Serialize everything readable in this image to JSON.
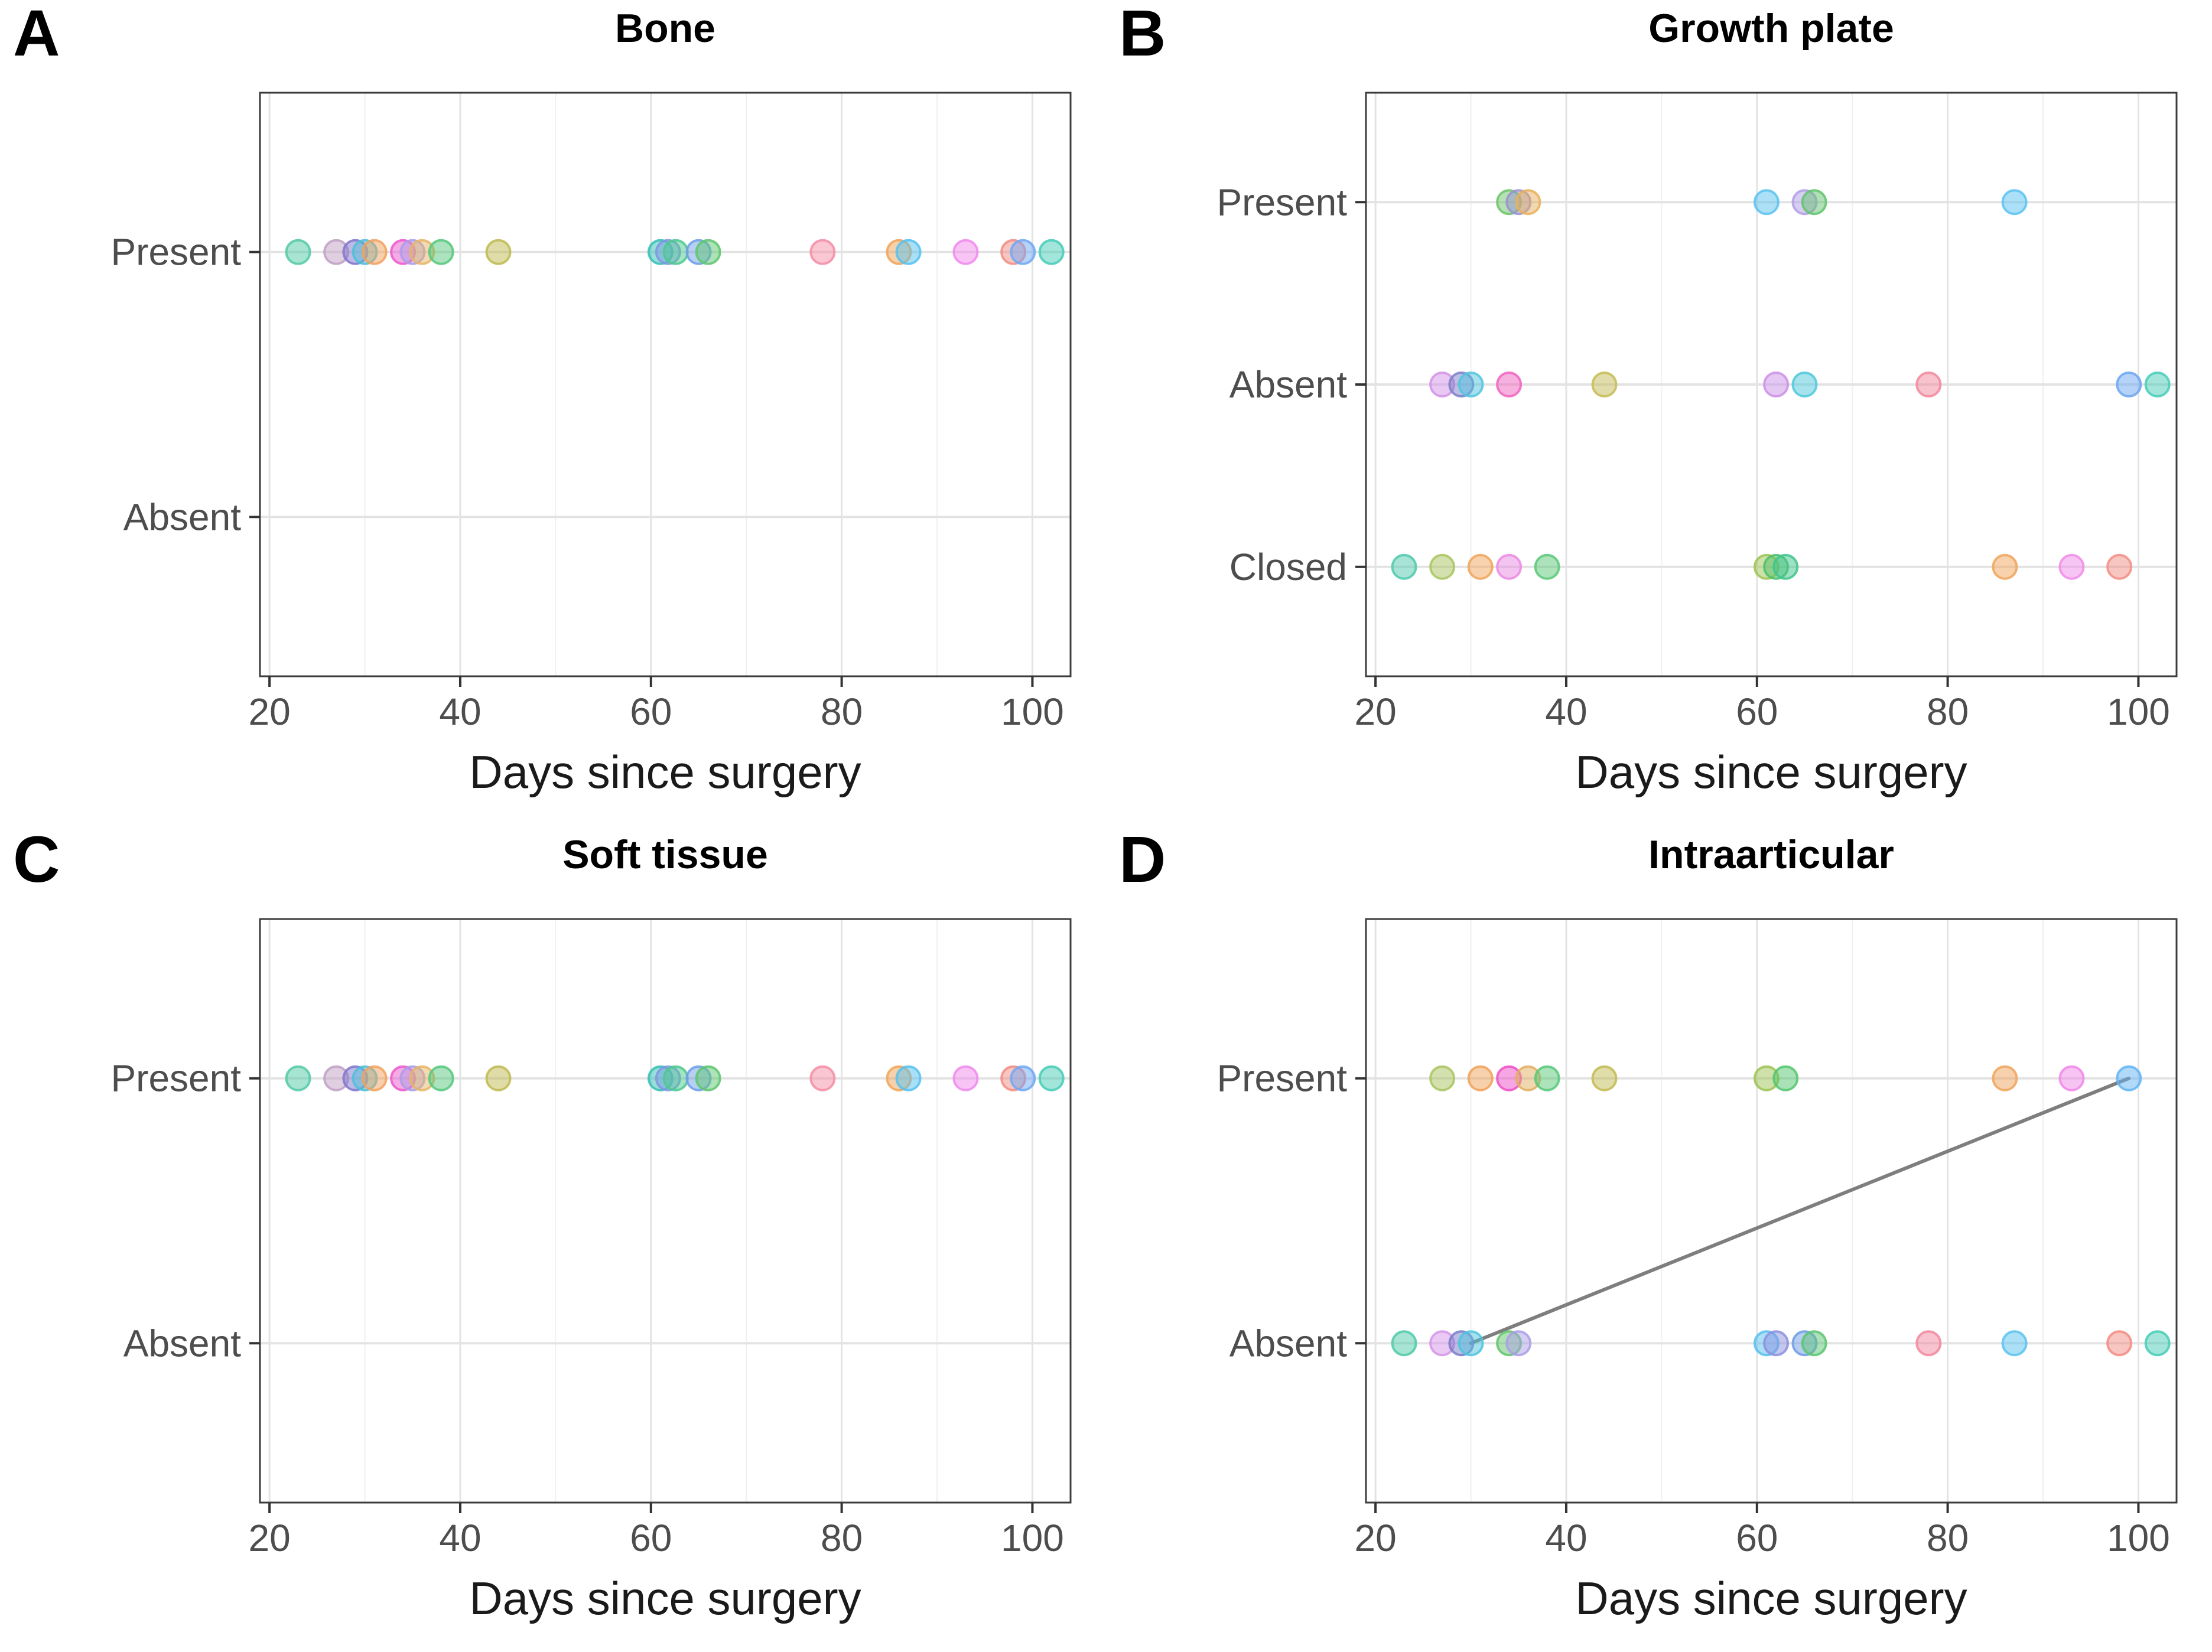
{
  "figure_title": "",
  "axis": {
    "xlabel": "Days since surgery",
    "x_ticks": [
      20,
      40,
      60,
      80,
      100
    ],
    "x_minor_ticks": [
      30,
      50,
      70,
      90
    ],
    "x_range": [
      19,
      104
    ]
  },
  "style": {
    "panel_border_color": "#3c3c3c",
    "major_grid_color": "#e3e3e3",
    "minor_grid_color": "#f0f0f0",
    "tick_color": "#333333",
    "tick_label_color": "#4d4d4d",
    "dot_fill_opacity": 0.5,
    "dot_stroke_opacity": 0.85,
    "connector_color": "#7e7e7e"
  },
  "chart_data": [
    {
      "type": "scatter",
      "letter": "A",
      "title": "Bone",
      "xlabel": "Days since surgery",
      "ylabel": "",
      "categories": [
        "Present",
        "Absent"
      ],
      "xlim": [
        19,
        104
      ],
      "x_ticks": [
        20,
        40,
        60,
        80,
        100
      ],
      "grid": true,
      "points": [
        {
          "day": 23,
          "cat": "Present",
          "color": "#52c9a6"
        },
        {
          "day": 27,
          "cat": "Present",
          "color": "#bfa0c4"
        },
        {
          "day": 29,
          "cat": "Present",
          "color": "#8076cc"
        },
        {
          "day": 30,
          "cat": "Present",
          "color": "#4fc0d8"
        },
        {
          "day": 31,
          "cat": "Present",
          "color": "#f2a25e"
        },
        {
          "day": 34,
          "cat": "Present",
          "color": "#ec57cc"
        },
        {
          "day": 35,
          "cat": "Present",
          "color": "#ab9ee6"
        },
        {
          "day": 36,
          "cat": "Present",
          "color": "#e6b566"
        },
        {
          "day": 38,
          "cat": "Present",
          "color": "#55c87c"
        },
        {
          "day": 44,
          "cat": "Present",
          "color": "#c0ba50"
        },
        {
          "day": 61,
          "cat": "Present",
          "color": "#34bfb4"
        },
        {
          "day": 61.8,
          "cat": "Present",
          "color": "#7b99e0"
        },
        {
          "day": 62.6,
          "cat": "Present",
          "color": "#4ec98e"
        },
        {
          "day": 65,
          "cat": "Present",
          "color": "#6f9fe8"
        },
        {
          "day": 66,
          "cat": "Present",
          "color": "#5ec56f"
        },
        {
          "day": 78,
          "cat": "Present",
          "color": "#f48da4"
        },
        {
          "day": 86,
          "cat": "Present",
          "color": "#f0a458"
        },
        {
          "day": 87,
          "cat": "Present",
          "color": "#56c1f0"
        },
        {
          "day": 93,
          "cat": "Present",
          "color": "#f089ec"
        },
        {
          "day": 98,
          "cat": "Present",
          "color": "#f28c84"
        },
        {
          "day": 99,
          "cat": "Present",
          "color": "#6ea8f5"
        },
        {
          "day": 102,
          "cat": "Present",
          "color": "#45ccb6"
        }
      ]
    },
    {
      "type": "scatter",
      "letter": "B",
      "title": "Growth plate",
      "xlabel": "Days since surgery",
      "ylabel": "",
      "categories": [
        "Present",
        "Absent",
        "Closed"
      ],
      "xlim": [
        19,
        104
      ],
      "x_ticks": [
        20,
        40,
        60,
        80,
        100
      ],
      "grid": true,
      "points": [
        {
          "day": 34,
          "cat": "Present",
          "color": "#6cc46a"
        },
        {
          "day": 35,
          "cat": "Present",
          "color": "#9a92d0"
        },
        {
          "day": 36,
          "cat": "Present",
          "color": "#e8b05e"
        },
        {
          "day": 61,
          "cat": "Present",
          "color": "#5ac2ee"
        },
        {
          "day": 65,
          "cat": "Present",
          "color": "#b19ce5"
        },
        {
          "day": 66,
          "cat": "Present",
          "color": "#61c46e"
        },
        {
          "day": 87,
          "cat": "Present",
          "color": "#5ac2f2"
        },
        {
          "day": 27,
          "cat": "Absent",
          "color": "#d392e8"
        },
        {
          "day": 29,
          "cat": "Absent",
          "color": "#7b7fca"
        },
        {
          "day": 30,
          "cat": "Absent",
          "color": "#52c4de"
        },
        {
          "day": 34,
          "cat": "Absent",
          "color": "#f064c0"
        },
        {
          "day": 44,
          "cat": "Absent",
          "color": "#c4bc55"
        },
        {
          "day": 62,
          "cat": "Absent",
          "color": "#cc8fe8"
        },
        {
          "day": 65,
          "cat": "Absent",
          "color": "#4fc8da"
        },
        {
          "day": 78,
          "cat": "Absent",
          "color": "#f2879c"
        },
        {
          "day": 99,
          "cat": "Absent",
          "color": "#6ba6f2"
        },
        {
          "day": 102,
          "cat": "Absent",
          "color": "#47ccb8"
        },
        {
          "day": 23,
          "cat": "Closed",
          "color": "#4fc9ab"
        },
        {
          "day": 27,
          "cat": "Closed",
          "color": "#a9c45f"
        },
        {
          "day": 31,
          "cat": "Closed",
          "color": "#f0a55c"
        },
        {
          "day": 34,
          "cat": "Closed",
          "color": "#ea8ae2"
        },
        {
          "day": 38,
          "cat": "Closed",
          "color": "#5bc878"
        },
        {
          "day": 61,
          "cat": "Closed",
          "color": "#9ec354"
        },
        {
          "day": 62,
          "cat": "Closed",
          "color": "#4ec06a"
        },
        {
          "day": 63,
          "cat": "Closed",
          "color": "#3fc48c"
        },
        {
          "day": 86,
          "cat": "Closed",
          "color": "#efa55a"
        },
        {
          "day": 93,
          "cat": "Closed",
          "color": "#ee8ce8"
        },
        {
          "day": 98,
          "cat": "Closed",
          "color": "#f28d84"
        }
      ]
    },
    {
      "type": "scatter",
      "letter": "C",
      "title": "Soft tissue",
      "xlabel": "Days since surgery",
      "ylabel": "",
      "categories": [
        "Present",
        "Absent"
      ],
      "xlim": [
        19,
        104
      ],
      "x_ticks": [
        20,
        40,
        60,
        80,
        100
      ],
      "grid": true,
      "points": [
        {
          "day": 23,
          "cat": "Present",
          "color": "#52c9a6"
        },
        {
          "day": 27,
          "cat": "Present",
          "color": "#bfa0c4"
        },
        {
          "day": 29,
          "cat": "Present",
          "color": "#8076cc"
        },
        {
          "day": 30,
          "cat": "Present",
          "color": "#4fc0d8"
        },
        {
          "day": 31,
          "cat": "Present",
          "color": "#f2a25e"
        },
        {
          "day": 34,
          "cat": "Present",
          "color": "#ec57cc"
        },
        {
          "day": 35,
          "cat": "Present",
          "color": "#ab9ee6"
        },
        {
          "day": 36,
          "cat": "Present",
          "color": "#e6b566"
        },
        {
          "day": 38,
          "cat": "Present",
          "color": "#55c87c"
        },
        {
          "day": 44,
          "cat": "Present",
          "color": "#c0ba50"
        },
        {
          "day": 61,
          "cat": "Present",
          "color": "#34bfb4"
        },
        {
          "day": 61.8,
          "cat": "Present",
          "color": "#7b99e0"
        },
        {
          "day": 62.6,
          "cat": "Present",
          "color": "#4ec98e"
        },
        {
          "day": 65,
          "cat": "Present",
          "color": "#6f9fe8"
        },
        {
          "day": 66,
          "cat": "Present",
          "color": "#5ec56f"
        },
        {
          "day": 78,
          "cat": "Present",
          "color": "#f48da4"
        },
        {
          "day": 86,
          "cat": "Present",
          "color": "#f0a458"
        },
        {
          "day": 87,
          "cat": "Present",
          "color": "#56c1f0"
        },
        {
          "day": 93,
          "cat": "Present",
          "color": "#f089ec"
        },
        {
          "day": 98,
          "cat": "Present",
          "color": "#f28c84"
        },
        {
          "day": 99,
          "cat": "Present",
          "color": "#6ea8f5"
        },
        {
          "day": 102,
          "cat": "Present",
          "color": "#45ccb6"
        }
      ]
    },
    {
      "type": "scatter",
      "letter": "D",
      "title": "Intraarticular",
      "xlabel": "Days since surgery",
      "ylabel": "",
      "categories": [
        "Present",
        "Absent"
      ],
      "xlim": [
        19,
        104
      ],
      "x_ticks": [
        20,
        40,
        60,
        80,
        100
      ],
      "grid": true,
      "connector_line": {
        "from_day": 30,
        "from_cat": "Absent",
        "to_day": 99,
        "to_cat": "Present",
        "color": "#7e7e7e"
      },
      "points": [
        {
          "day": 27,
          "cat": "Present",
          "color": "#a9c45f"
        },
        {
          "day": 31,
          "cat": "Present",
          "color": "#f0a159"
        },
        {
          "day": 34,
          "cat": "Present",
          "color": "#ed50c8"
        },
        {
          "day": 36,
          "cat": "Present",
          "color": "#e2af62"
        },
        {
          "day": 38,
          "cat": "Present",
          "color": "#57c878"
        },
        {
          "day": 44,
          "cat": "Present",
          "color": "#c2bb52"
        },
        {
          "day": 61,
          "cat": "Present",
          "color": "#9ec353"
        },
        {
          "day": 63,
          "cat": "Present",
          "color": "#53c56e"
        },
        {
          "day": 86,
          "cat": "Present",
          "color": "#efa45c"
        },
        {
          "day": 93,
          "cat": "Present",
          "color": "#ef87e8"
        },
        {
          "day": 99,
          "cat": "Present",
          "color": "#62b4f5"
        },
        {
          "day": 23,
          "cat": "Absent",
          "color": "#4ecaa8"
        },
        {
          "day": 27,
          "cat": "Absent",
          "color": "#d595ea"
        },
        {
          "day": 29,
          "cat": "Absent",
          "color": "#7a7cc9"
        },
        {
          "day": 30,
          "cat": "Absent",
          "color": "#4fc4de"
        },
        {
          "day": 34,
          "cat": "Absent",
          "color": "#62c46c"
        },
        {
          "day": 35,
          "cat": "Absent",
          "color": "#ab9ee8"
        },
        {
          "day": 61,
          "cat": "Absent",
          "color": "#58c0ee"
        },
        {
          "day": 62,
          "cat": "Absent",
          "color": "#8b90e0"
        },
        {
          "day": 65,
          "cat": "Absent",
          "color": "#6f9be4"
        },
        {
          "day": 66,
          "cat": "Absent",
          "color": "#5cc472"
        },
        {
          "day": 78,
          "cat": "Absent",
          "color": "#f2879e"
        },
        {
          "day": 87,
          "cat": "Absent",
          "color": "#5ac2f0"
        },
        {
          "day": 98,
          "cat": "Absent",
          "color": "#f28b82"
        },
        {
          "day": 102,
          "cat": "Absent",
          "color": "#47ccb6"
        }
      ]
    }
  ]
}
